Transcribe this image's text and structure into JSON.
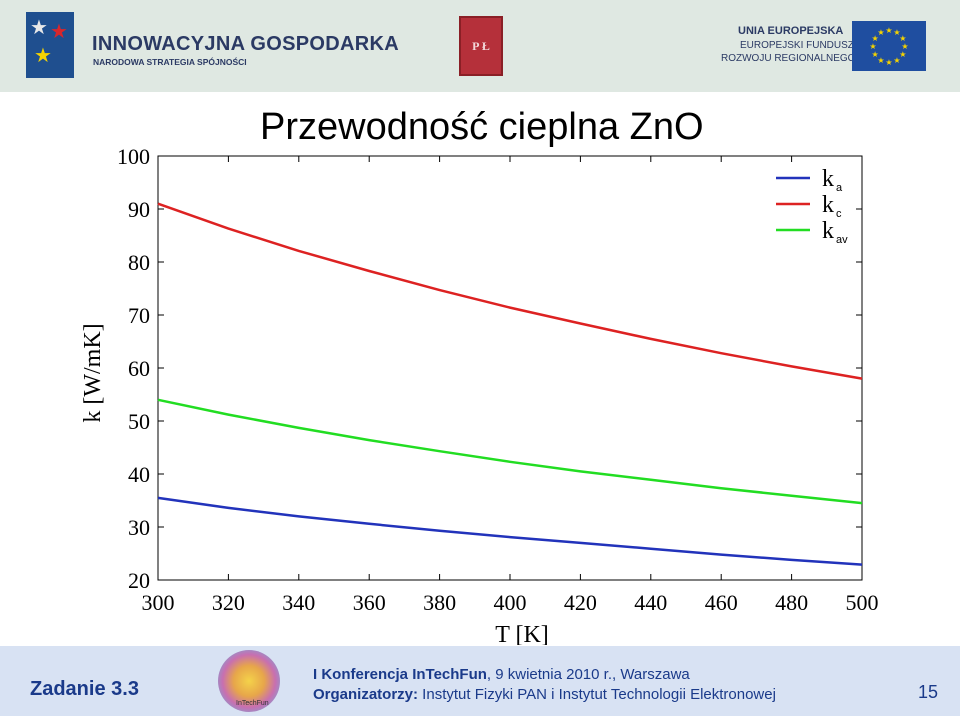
{
  "header": {
    "ig_title": "INNOWACYJNA GOSPODARKA",
    "ig_subtitle": "NARODOWA STRATEGIA SPÓJNOŚCI",
    "pl_logo_text": "P Ł",
    "eu_line1": "UNIA EUROPEJSKA",
    "eu_line2": "EUROPEJSKI FUNDUSZ",
    "eu_line3": "ROZWOJU REGIONALNEGO",
    "eu_flag_color": "#1f4ea0",
    "eu_star_color": "#f5d300"
  },
  "slide": {
    "title": "Przewodność cieplna ZnO"
  },
  "chart_data": {
    "type": "line",
    "title": "",
    "xlabel": "T [K]",
    "ylabel": "k [W/mK]",
    "xlim": [
      300,
      500
    ],
    "ylim": [
      20,
      100
    ],
    "x_ticks": [
      300,
      320,
      340,
      360,
      380,
      400,
      420,
      440,
      460,
      480,
      500
    ],
    "y_ticks": [
      20,
      30,
      40,
      50,
      60,
      70,
      80,
      90,
      100
    ],
    "grid": false,
    "legend_position": "top-right",
    "series": [
      {
        "name": "k",
        "subscript": "a",
        "color": "#2233bb",
        "x": [
          300,
          320,
          340,
          360,
          380,
          400,
          420,
          440,
          460,
          480,
          500
        ],
        "y": [
          35.5,
          33.6,
          32.0,
          30.6,
          29.3,
          28.1,
          27.0,
          25.9,
          24.8,
          23.8,
          22.9
        ]
      },
      {
        "name": "k",
        "subscript": "c",
        "color": "#dd2222",
        "x": [
          300,
          320,
          340,
          360,
          380,
          400,
          420,
          440,
          460,
          480,
          500
        ],
        "y": [
          91.0,
          86.3,
          82.1,
          78.3,
          74.7,
          71.4,
          68.4,
          65.5,
          62.8,
          60.3,
          58.0
        ]
      },
      {
        "name": "k",
        "subscript": "av",
        "color": "#22dd22",
        "x": [
          300,
          320,
          340,
          360,
          380,
          400,
          420,
          440,
          460,
          480,
          500
        ],
        "y": [
          54.0,
          51.2,
          48.7,
          46.4,
          44.3,
          42.3,
          40.5,
          38.9,
          37.3,
          35.9,
          34.5
        ]
      }
    ]
  },
  "footer": {
    "zadanie": "Zadanie 3.3",
    "logo_text": "InTechFun",
    "conf_bold": "I Konferencja InTechFun",
    "conf_rest": ", 9 kwietnia 2010 r.,  Warszawa",
    "org_bold": "Organizatorzy:",
    "org_rest": " Instytut Fizyki PAN i Instytut Technologii Elektronowej",
    "page_number": "15"
  }
}
